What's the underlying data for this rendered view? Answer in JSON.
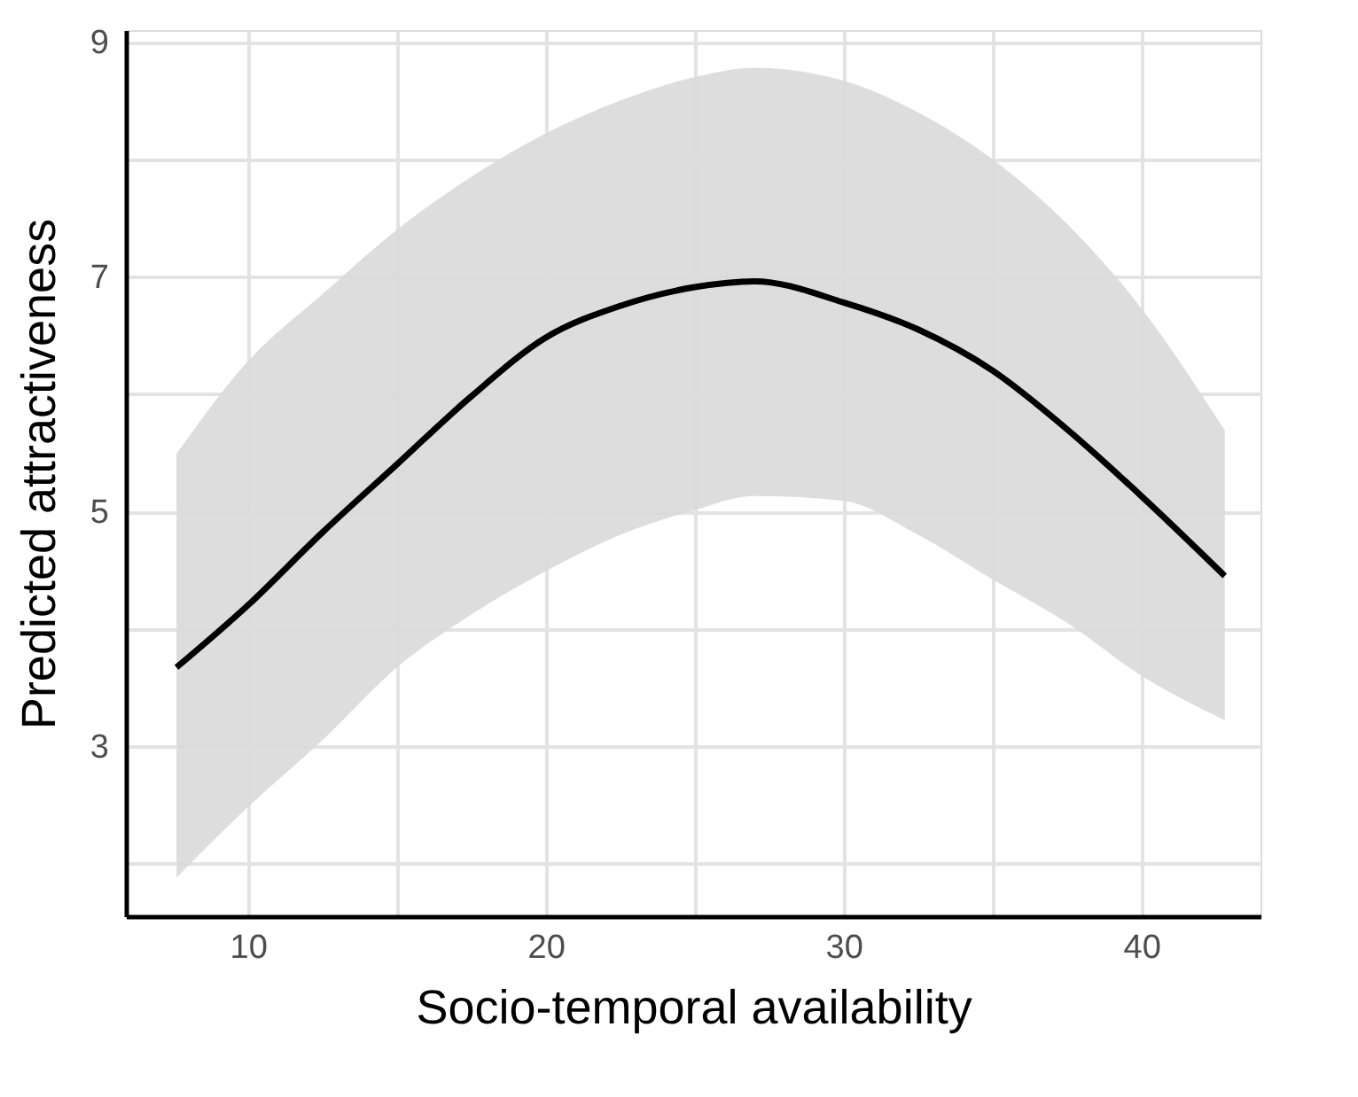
{
  "chart_data": {
    "type": "line",
    "xlabel": "Socio-temporal availability",
    "ylabel": "Predicted attractiveness",
    "x": [
      7.6,
      10,
      12.5,
      15,
      17.5,
      20,
      22.5,
      25,
      27,
      30,
      32.5,
      35,
      37.5,
      40,
      42.8
    ],
    "series": [
      {
        "color": "#000000",
        "values": [
          3.67,
          4.2,
          4.82,
          5.4,
          5.98,
          6.48,
          6.75,
          6.91,
          6.96,
          6.78,
          6.55,
          6.2,
          5.7,
          5.13,
          4.45
        ],
        "lower": [
          1.88,
          2.48,
          3.05,
          3.67,
          4.12,
          4.49,
          4.8,
          5.01,
          5.13,
          5.09,
          4.8,
          4.42,
          4.05,
          3.6,
          3.22
        ],
        "upper": [
          5.49,
          6.28,
          6.85,
          7.4,
          7.85,
          8.22,
          8.5,
          8.7,
          8.78,
          8.67,
          8.4,
          8.0,
          7.45,
          6.73,
          5.69
        ]
      }
    ],
    "xlim": [
      5.9,
      44
    ],
    "ylim": [
      1.55,
      9.1
    ],
    "xticks": [
      10,
      {
        "value": 15,
        "label": null
      },
      20,
      {
        "value": 25,
        "label": null
      },
      30,
      {
        "value": 35,
        "label": null
      },
      40
    ],
    "yticks": [
      {
        "value": 2,
        "label": null
      },
      3,
      {
        "value": 4,
        "label": null
      },
      5,
      {
        "value": 6,
        "label": null
      },
      7,
      {
        "value": 8,
        "label": null
      },
      9
    ],
    "grid": true,
    "marker": "none",
    "line_style": "solid"
  }
}
